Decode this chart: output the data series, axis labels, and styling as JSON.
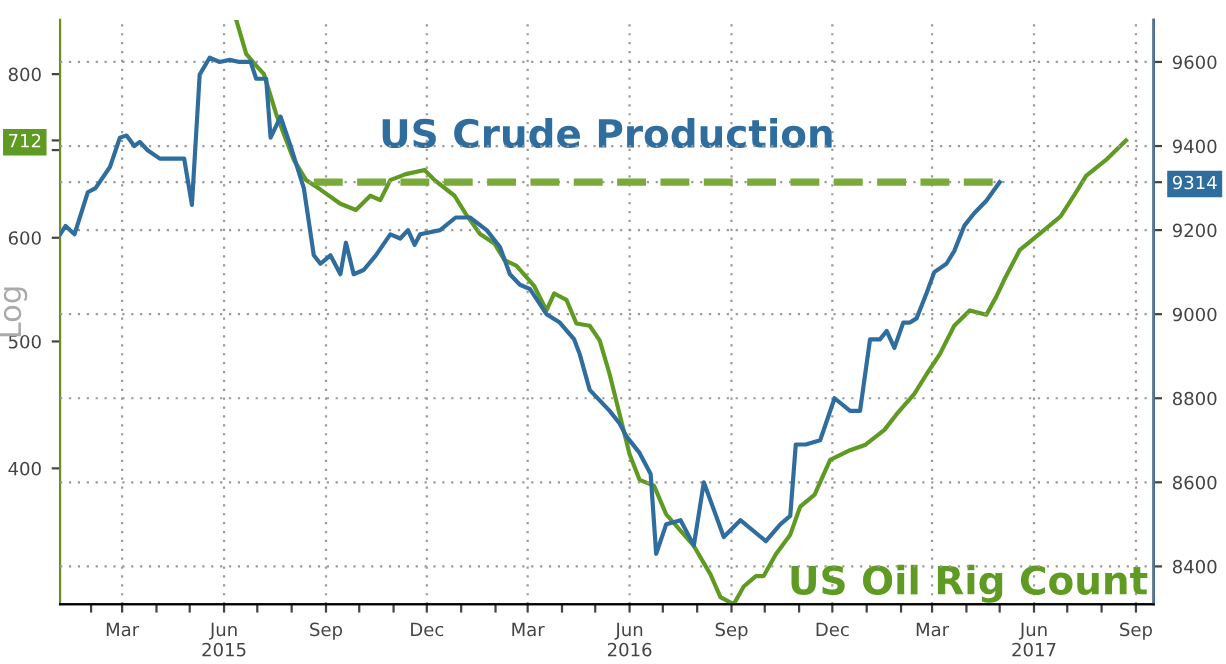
{
  "chart_data": {
    "type": "line",
    "ylabel": "Log",
    "log": "y",
    "grid": true,
    "xlim": [
      "2015-01-04",
      "2017-09-17"
    ],
    "ylim": [
      315,
      880
    ],
    "y2lim": [
      8310,
      9700
    ],
    "yticks": [
      400,
      500,
      600,
      {
        "value": 700,
        "label": null
      },
      712,
      800
    ],
    "y2ticks": [
      8400,
      8600,
      8800,
      9000,
      9200,
      9314,
      9400,
      9600
    ],
    "xticks": [
      {
        "value": "2015-02-01",
        "label": null
      },
      {
        "value": "2015-03-01",
        "label": "Mar"
      },
      {
        "value": "2015-04-01",
        "label": null
      },
      {
        "value": "2015-05-01",
        "label": null
      },
      {
        "value": "2015-06-01",
        "label": "Jun\n2015"
      },
      {
        "value": "2015-07-01",
        "label": null
      },
      {
        "value": "2015-08-01",
        "label": null
      },
      {
        "value": "2015-09-01",
        "label": "Sep"
      },
      {
        "value": "2015-10-01",
        "label": null
      },
      {
        "value": "2015-11-01",
        "label": null
      },
      {
        "value": "2015-12-01",
        "label": "Dec"
      },
      {
        "value": "2016-01-01",
        "label": null
      },
      {
        "value": "2016-02-01",
        "label": null
      },
      {
        "value": "2016-03-01",
        "label": "Mar"
      },
      {
        "value": "2016-04-01",
        "label": null
      },
      {
        "value": "2016-05-01",
        "label": null
      },
      {
        "value": "2016-06-01",
        "label": "Jun\n2016"
      },
      {
        "value": "2016-07-01",
        "label": null
      },
      {
        "value": "2016-08-01",
        "label": null
      },
      {
        "value": "2016-09-01",
        "label": "Sep"
      },
      {
        "value": "2016-10-01",
        "label": null
      },
      {
        "value": "2016-11-01",
        "label": null
      },
      {
        "value": "2016-12-01",
        "label": "Dec"
      },
      {
        "value": "2017-01-01",
        "label": null
      },
      {
        "value": "2017-02-01",
        "label": null
      },
      {
        "value": "2017-03-01",
        "label": "Mar"
      },
      {
        "value": "2017-04-01",
        "label": null
      },
      {
        "value": "2017-05-01",
        "label": null
      },
      {
        "value": "2017-06-01",
        "label": "Jun\n2017"
      },
      {
        "value": "2017-07-01",
        "label": null
      },
      {
        "value": "2017-08-01",
        "label": null
      },
      {
        "value": "2017-09-01",
        "label": "Sep"
      }
    ],
    "series": [
      {
        "name": "US Crude Production",
        "color": "#2f6d9e",
        "axis": "y2",
        "x": [
          "2015-01-04",
          "2015-01-09",
          "2015-01-17",
          "2015-01-29",
          "2015-02-05",
          "2015-02-18",
          "2015-02-27",
          "2015-03-05",
          "2015-03-12",
          "2015-03-17",
          "2015-03-24",
          "2015-04-04",
          "2015-04-26",
          "2015-05-03",
          "2015-05-10",
          "2015-05-19",
          "2015-05-28",
          "2015-06-06",
          "2015-06-15",
          "2015-06-25",
          "2015-06-30",
          "2015-07-09",
          "2015-07-13",
          "2015-07-22",
          "2015-07-31",
          "2015-08-12",
          "2015-08-21",
          "2015-08-27",
          "2015-09-05",
          "2015-09-14",
          "2015-09-19",
          "2015-09-26",
          "2015-10-05",
          "2015-10-16",
          "2015-10-29",
          "2015-11-07",
          "2015-11-14",
          "2015-11-20",
          "2015-11-25",
          "2015-12-13",
          "2015-12-27",
          "2016-01-09",
          "2016-01-24",
          "2016-02-05",
          "2016-02-14",
          "2016-02-23",
          "2016-03-03",
          "2016-03-18",
          "2016-03-30",
          "2016-04-12",
          "2016-04-17",
          "2016-04-26",
          "2016-05-14",
          "2016-05-23",
          "2016-05-29",
          "2016-06-10",
          "2016-06-20",
          "2016-06-25",
          "2016-07-04",
          "2016-07-17",
          "2016-07-29",
          "2016-08-07",
          "2016-08-25",
          "2016-09-09",
          "2016-10-02",
          "2016-10-15",
          "2016-10-24",
          "2016-10-29",
          "2016-11-07",
          "2016-11-20",
          "2016-12-03",
          "2016-12-17",
          "2016-12-26",
          "2017-01-04",
          "2017-01-13",
          "2017-01-19",
          "2017-01-26",
          "2017-02-03",
          "2017-02-09",
          "2017-02-15",
          "2017-02-24",
          "2017-03-03",
          "2017-03-14",
          "2017-03-21",
          "2017-03-30",
          "2017-04-08",
          "2017-04-19",
          "2017-05-01"
        ],
        "values": [
          9190,
          9210,
          9190,
          9290,
          9300,
          9350,
          9420,
          9425,
          9400,
          9410,
          9390,
          9370,
          9370,
          9260,
          9570,
          9610,
          9600,
          9605,
          9600,
          9600,
          9560,
          9560,
          9420,
          9470,
          9400,
          9300,
          9140,
          9120,
          9140,
          9095,
          9170,
          9095,
          9105,
          9140,
          9190,
          9180,
          9200,
          9165,
          9190,
          9200,
          9230,
          9230,
          9200,
          9160,
          9095,
          9070,
          9060,
          9000,
          8980,
          8940,
          8905,
          8820,
          8770,
          8740,
          8710,
          8670,
          8620,
          8430,
          8500,
          8510,
          8450,
          8600,
          8470,
          8510,
          8460,
          8500,
          8520,
          8690,
          8690,
          8700,
          8800,
          8770,
          8770,
          8940,
          8940,
          8960,
          8920,
          8980,
          8980,
          8990,
          9050,
          9100,
          9120,
          9150,
          9210,
          9240,
          9270,
          9314
        ]
      },
      {
        "name": "US Oil Rig Count",
        "color": "#5f9a22",
        "x": [
          "2015-06-12",
          "2015-06-21",
          "2015-06-30",
          "2015-07-07",
          "2015-07-18",
          "2015-08-03",
          "2015-08-14",
          "2015-08-27",
          "2015-09-14",
          "2015-09-28",
          "2015-10-11",
          "2015-10-20",
          "2015-10-29",
          "2015-11-12",
          "2015-11-29",
          "2015-12-08",
          "2015-12-26",
          "2016-01-05",
          "2016-01-18",
          "2016-01-31",
          "2016-02-09",
          "2016-02-20",
          "2016-03-07",
          "2016-03-18",
          "2016-03-25",
          "2016-04-05",
          "2016-04-14",
          "2016-04-26",
          "2016-05-05",
          "2016-05-14",
          "2016-05-23",
          "2016-06-01",
          "2016-06-10",
          "2016-06-23",
          "2016-07-04",
          "2016-07-29",
          "2016-08-13",
          "2016-08-22",
          "2016-09-03",
          "2016-09-12",
          "2016-09-23",
          "2016-09-30",
          "2016-10-11",
          "2016-10-24",
          "2016-11-02",
          "2016-11-15",
          "2016-11-29",
          "2016-12-17",
          "2016-12-31",
          "2017-01-17",
          "2017-01-28",
          "2017-02-13",
          "2017-02-24",
          "2017-03-08",
          "2017-03-21",
          "2017-04-04",
          "2017-04-19",
          "2017-04-28",
          "2017-05-05",
          "2017-05-19",
          "2017-06-06",
          "2017-06-25",
          "2017-07-07",
          "2017-07-18",
          "2017-08-05",
          "2017-08-23"
        ],
        "values": [
          880,
          829,
          812,
          800,
          746,
          688,
          664,
          653,
          637,
          630,
          646,
          641,
          664,
          671,
          676,
          664,
          646,
          626,
          604,
          594,
          577,
          571,
          551,
          528,
          544,
          538,
          516,
          514,
          501,
          472,
          440,
          410,
          392,
          388,
          369,
          349,
          332,
          319,
          315,
          325,
          331,
          331,
          344,
          356,
          374,
          382,
          406,
          413,
          417,
          428,
          440,
          456,
          472,
          489,
          514,
          528,
          524,
          541,
          557,
          587,
          604,
          623,
          646,
          669,
          688,
          712
        ]
      },
      {
        "color": "#7aab3a",
        "axis": "y2",
        "line_style": "dashed",
        "x": [
          "2015-08-21",
          "2017-05-01"
        ],
        "values": [
          9314,
          9314
        ]
      }
    ]
  }
}
